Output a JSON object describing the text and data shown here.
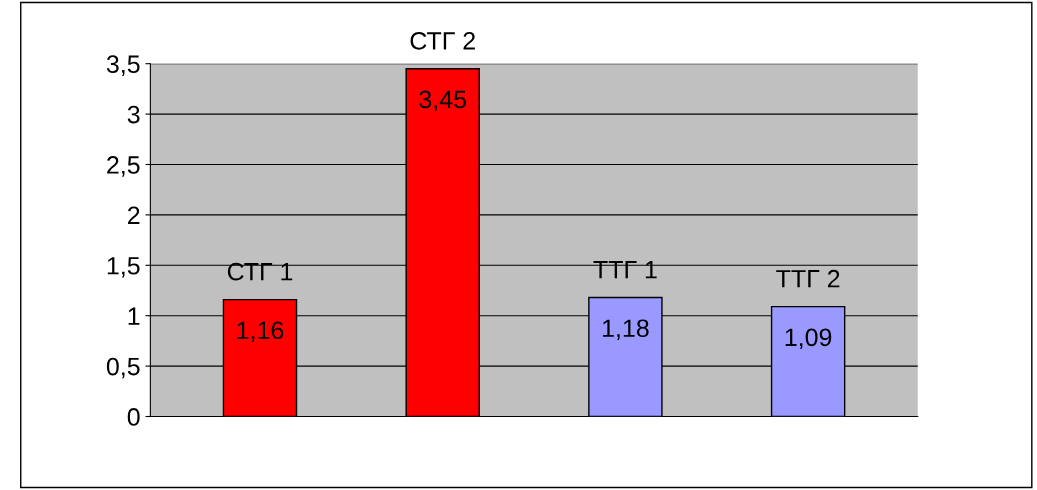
{
  "chart_data": {
    "type": "bar",
    "categories": [
      "СТГ 1",
      "СТГ 2",
      "ТТГ 1",
      "ТТГ 2"
    ],
    "values": [
      1.16,
      3.45,
      1.18,
      1.09
    ],
    "colors": [
      "#ff0000",
      "#ff0000",
      "#9999ff",
      "#9999ff"
    ],
    "value_labels": [
      "1,16",
      "3,45",
      "1,18",
      "1,09"
    ],
    "ylim": [
      0,
      3.5
    ],
    "yticks": [
      0,
      {
        "value": 0.5,
        "label": "0,5"
      },
      1,
      {
        "value": 1.5,
        "label": "1,5"
      },
      2,
      {
        "value": 2.5,
        "label": "2,5"
      },
      3,
      {
        "value": 3.5,
        "label": "3,5"
      }
    ],
    "grid": "y"
  }
}
